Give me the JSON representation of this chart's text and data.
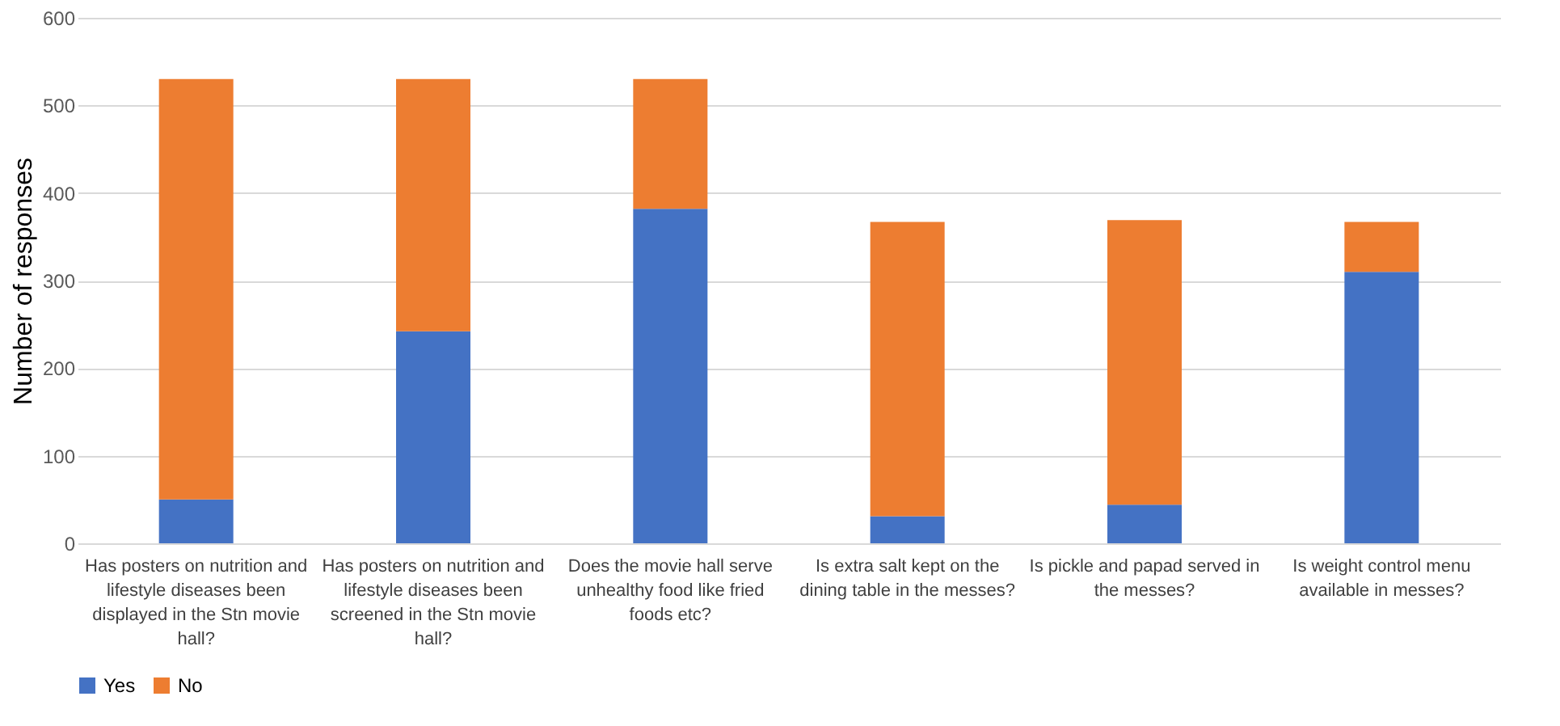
{
  "chart_data": {
    "type": "bar",
    "stacked": true,
    "ylabel": "Number of responses",
    "categories": [
      "Has posters on nutrition and lifestyle diseases been displayed in the Stn movie hall?",
      "Has posters on nutrition and lifestyle diseases been screened in the Stn movie hall?",
      "Does the movie hall serve unhealthy food like fried foods etc?",
      "Is extra salt kept on the dining table in the messes?",
      "Is pickle and papad served in the messes?",
      "Is weight control menu available in messes?"
    ],
    "series": [
      {
        "name": "Yes",
        "color": "#4472c4",
        "values": [
          50,
          242,
          382,
          31,
          44,
          310
        ]
      },
      {
        "name": "No",
        "color": "#ed7d31",
        "values": [
          480,
          288,
          148,
          336,
          325,
          57
        ]
      }
    ],
    "ylim": [
      0,
      600
    ],
    "yticks": [
      0,
      100,
      200,
      300,
      400,
      500,
      600
    ],
    "grid": "y",
    "legend": "bottom"
  }
}
